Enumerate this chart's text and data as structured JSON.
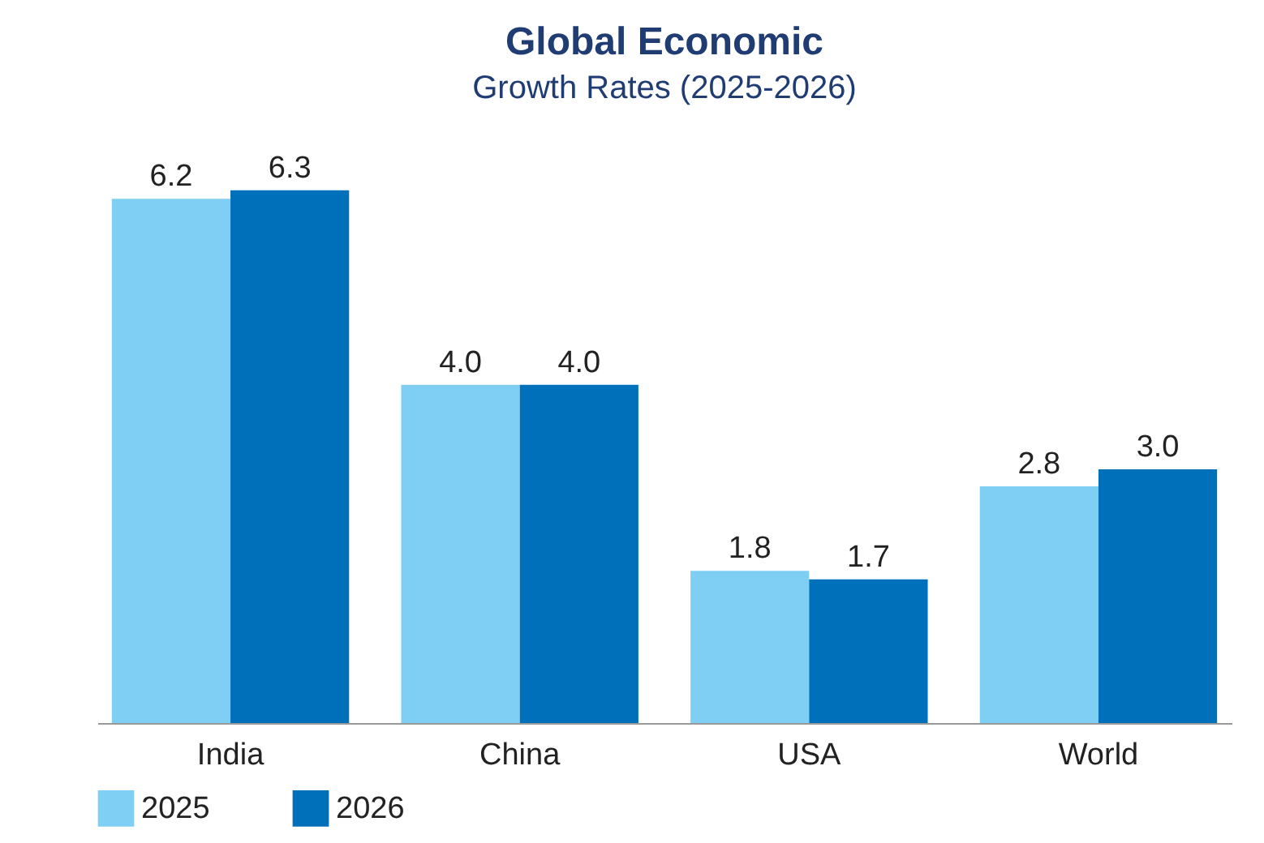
{
  "chart_data": {
    "type": "bar",
    "title": "Global Economic",
    "subtitle": "Growth Rates (2025-2026)",
    "categories": [
      "India",
      "China",
      "USA",
      "World"
    ],
    "series": [
      {
        "name": "2025",
        "color": "#7fcff4",
        "values": [
          6.2,
          4.0,
          1.8,
          2.8
        ],
        "value_labels": [
          "6.2",
          "4.0",
          "1.8",
          "2.8"
        ]
      },
      {
        "name": "2026",
        "color": "#0070ba",
        "values": [
          6.3,
          4.0,
          1.7,
          3.0
        ],
        "value_labels": [
          "6.3",
          "4.0",
          "1.7",
          "3.0"
        ]
      }
    ],
    "grid": false,
    "legend": "bottom"
  }
}
